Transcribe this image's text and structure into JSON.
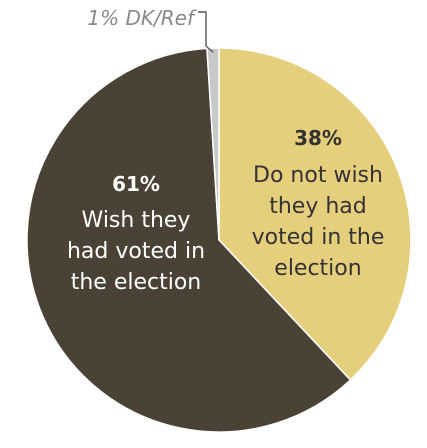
{
  "chart_data": {
    "type": "pie",
    "slices": [
      {
        "label": "Do not wish they had voted in the election",
        "value_label": "38%",
        "value": 38,
        "color": "#e5cf7c",
        "text_color": "#333333",
        "label_lines": [
          "Do not wish",
          "they had",
          "voted in the",
          "election"
        ]
      },
      {
        "label": "Wish they had voted in the election",
        "value_label": "61%",
        "value": 61,
        "color": "#4a4234",
        "text_color": "#ffffff",
        "label_lines": [
          "Wish they",
          "had voted in",
          "the election"
        ]
      },
      {
        "label": "DK/Ref",
        "value_label": "1%",
        "value": 1,
        "color": "#c8c8c8",
        "callout": "1% DK/Ref"
      }
    ],
    "start_angle_deg": 0,
    "direction": "clockwise"
  }
}
